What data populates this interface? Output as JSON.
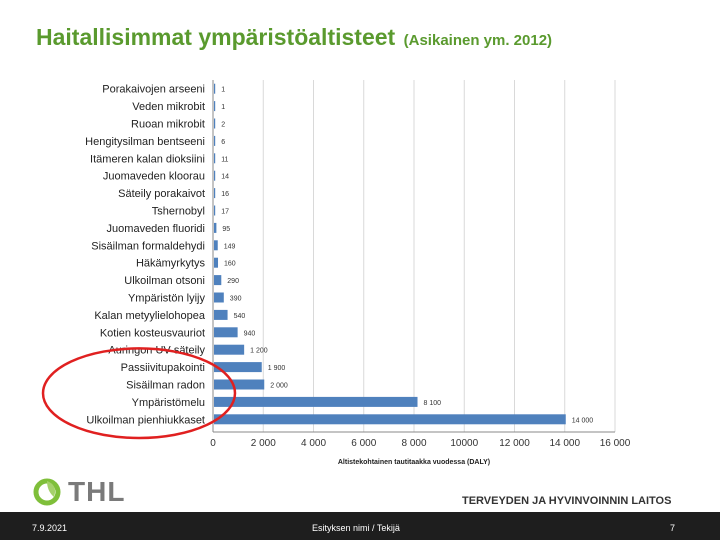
{
  "title": "Haitallisimmat ympäristöaltisteet",
  "subtitle": "(Asikainen ym. 2012)",
  "colors": {
    "bar": "#4f81bd",
    "title": "#5a9a2e",
    "highlight": "#e02020",
    "grid": "#d9d9d9"
  },
  "chart_data": {
    "type": "bar",
    "orientation": "horizontal",
    "categories": [
      "Porakaivojen arseeni",
      "Veden mikrobit",
      "Ruoan mikrobit",
      "Hengitysilman bentseeni",
      "Itämeren kalan dioksiini",
      "Juomaveden kloorau",
      "Säteily porakaivot",
      "Tshernobyl",
      "Juomaveden fluoridi",
      "Sisäilman formaldehydi",
      "Häkämyrkytys",
      "Ulkoilman otsoni",
      "Ympäristön lyijy",
      "Kalan metyylielohopea",
      "Kotien kosteusvauriot",
      "Auringon UV-säteily",
      "Passiivitupakointi",
      "Sisäilman radon",
      "Ympäristömelu",
      "Ulkoilman pienhiukkaset"
    ],
    "values": [
      1,
      1,
      2,
      6,
      11,
      14,
      16,
      17,
      95,
      149,
      160,
      290,
      390,
      540,
      940,
      1200,
      1900,
      2000,
      8100,
      14000
    ],
    "value_labels": [
      "1",
      "1",
      "2",
      "6",
      "11",
      "14",
      "16",
      "17",
      "95",
      "149",
      "160",
      "290",
      "390",
      "540",
      "940",
      "1 200",
      "1 900",
      "2 000",
      "8 100",
      "14 000"
    ],
    "xlabel": "Altistekohtainen tautitaakka vuodessa (DALY)",
    "xlim": [
      0,
      16000
    ],
    "ticks": [
      0,
      2000,
      4000,
      6000,
      8000,
      10000,
      12000,
      14000,
      16000
    ],
    "tick_labels": [
      "0",
      "2 000",
      "4 000",
      "6 000",
      "8 000",
      "10000",
      "12 000",
      "14 000",
      "16 000"
    ],
    "grid": true,
    "highlighted_categories": [
      "Passiivitupakointi",
      "Sisäilman radon",
      "Ympäristömelu",
      "Ulkoilman pienhiukkaset"
    ]
  },
  "logo": {
    "text": "THL"
  },
  "organization": "TERVEYDEN JA HYVINVOINNIN LAITOS",
  "footer": {
    "date": "7.9.2021",
    "presenter": "Esityksen nimi / Tekijä",
    "page": "7"
  }
}
